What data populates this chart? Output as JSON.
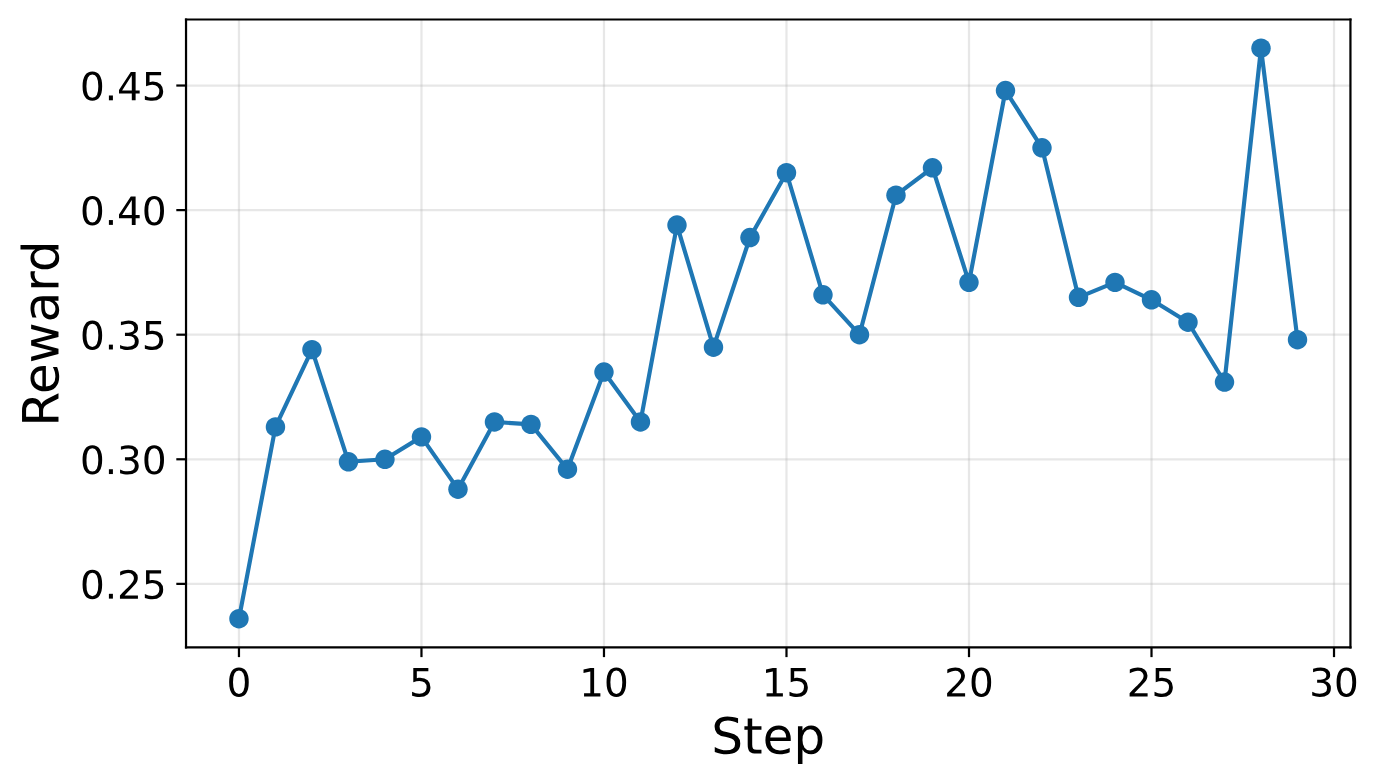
{
  "chart_data": {
    "type": "line",
    "xlabel": "Step",
    "ylabel": "Reward",
    "x": [
      0,
      1,
      2,
      3,
      4,
      5,
      6,
      7,
      8,
      9,
      10,
      11,
      12,
      13,
      14,
      15,
      16,
      17,
      18,
      19,
      20,
      21,
      22,
      23,
      24,
      25,
      26,
      27,
      28,
      29
    ],
    "series": [
      {
        "color": "#1f77b4",
        "values": [
          0.236,
          0.313,
          0.344,
          0.299,
          0.3,
          0.309,
          0.288,
          0.315,
          0.314,
          0.296,
          0.335,
          0.315,
          0.394,
          0.345,
          0.389,
          0.415,
          0.366,
          0.35,
          0.406,
          0.417,
          0.371,
          0.448,
          0.425,
          0.365,
          0.371,
          0.364,
          0.355,
          0.331,
          0.465,
          0.348
        ]
      }
    ],
    "xlim": [
      -1.45,
      30.45
    ],
    "ylim": [
      0.2245,
      0.4765
    ],
    "xticks": [
      0,
      5,
      10,
      15,
      20,
      25,
      30
    ],
    "yticks": [
      {
        "value": 0.25,
        "label": "0.25"
      },
      {
        "value": 0.3,
        "label": "0.30"
      },
      {
        "value": 0.35,
        "label": "0.35"
      },
      {
        "value": 0.4,
        "label": "0.40"
      },
      {
        "value": 0.45,
        "label": "0.45"
      }
    ],
    "grid": true,
    "marker": "circle",
    "line_style": "solid"
  }
}
